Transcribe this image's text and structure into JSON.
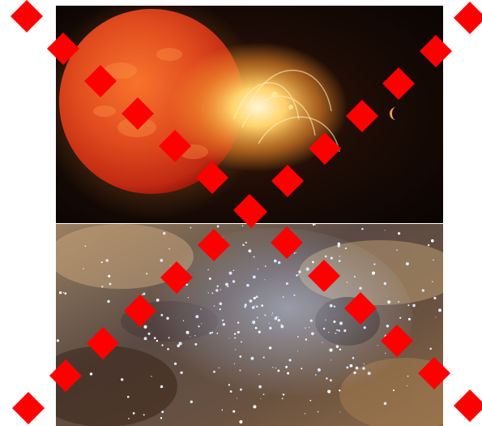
{
  "images": [
    {
      "subject": "red-star-flare",
      "position": "top"
    },
    {
      "subject": "star-cluster-nebula",
      "position": "bottom"
    }
  ],
  "overlay": {
    "marker_shape": "diamond",
    "marker_color": "#ff0000",
    "pattern": "X"
  },
  "colors": {
    "space_dark": "#0a0604",
    "star_red": "#d8381a",
    "flare_yellow": "#ffd36a",
    "nebula_brown": "#7a5a3c",
    "cluster_blue": "#b8d4ff"
  }
}
